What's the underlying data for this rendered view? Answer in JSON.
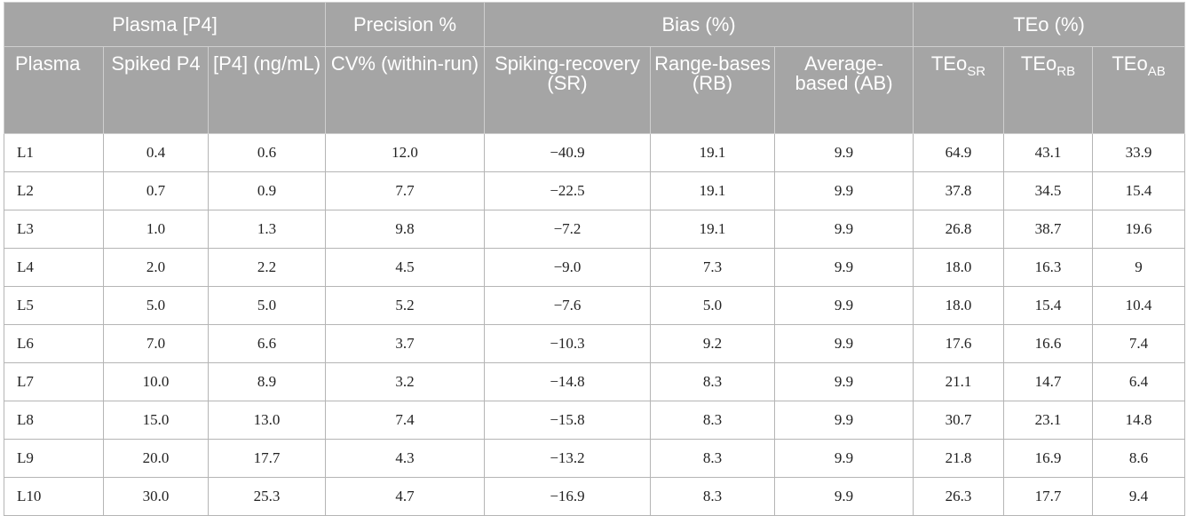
{
  "header": {
    "groups": {
      "plasma": "Plasma [P4]",
      "precision": "Precision %",
      "bias": "Bias (%)",
      "teo": "TEo (%)"
    },
    "columns": {
      "plasma": "Plasma",
      "spiked": "Spiked P4",
      "p4": "[P4] (ng/mL)",
      "cv": "CV% (within-run)",
      "sr": "Spiking-recovery (SR)",
      "rb": "Range-bases (RB)",
      "ab": "Average-based (AB)",
      "teo_base": "TEo",
      "teo_sr_sub": "SR",
      "teo_rb_sub": "RB",
      "teo_ab_sub": "AB"
    }
  },
  "rows": [
    [
      "L1",
      "0.4",
      "0.6",
      "12.0",
      "−40.9",
      "19.1",
      "9.9",
      "64.9",
      "43.1",
      "33.9"
    ],
    [
      "L2",
      "0.7",
      "0.9",
      "7.7",
      "−22.5",
      "19.1",
      "9.9",
      "37.8",
      "34.5",
      "15.4"
    ],
    [
      "L3",
      "1.0",
      "1.3",
      "9.8",
      "−7.2",
      "19.1",
      "9.9",
      "26.8",
      "38.7",
      "19.6"
    ],
    [
      "L4",
      "2.0",
      "2.2",
      "4.5",
      "−9.0",
      "7.3",
      "9.9",
      "18.0",
      "16.3",
      "9"
    ],
    [
      "L5",
      "5.0",
      "5.0",
      "5.2",
      "−7.6",
      "5.0",
      "9.9",
      "18.0",
      "15.4",
      "10.4"
    ],
    [
      "L6",
      "7.0",
      "6.6",
      "3.7",
      "−10.3",
      "9.2",
      "9.9",
      "17.6",
      "16.6",
      "7.4"
    ],
    [
      "L7",
      "10.0",
      "8.9",
      "3.2",
      "−14.8",
      "8.3",
      "9.9",
      "21.1",
      "14.7",
      "6.4"
    ],
    [
      "L8",
      "15.0",
      "13.0",
      "7.4",
      "−15.8",
      "8.3",
      "9.9",
      "30.7",
      "23.1",
      "14.8"
    ],
    [
      "L9",
      "20.0",
      "17.7",
      "4.3",
      "−13.2",
      "8.3",
      "9.9",
      "21.8",
      "16.9",
      "8.6"
    ],
    [
      "L10",
      "30.0",
      "25.3",
      "4.7",
      "−16.9",
      "8.3",
      "9.9",
      "26.3",
      "17.7",
      "9.4"
    ]
  ]
}
